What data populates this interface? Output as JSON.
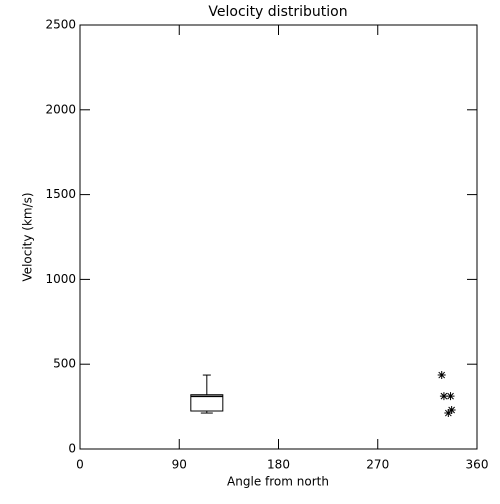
{
  "chart_data": {
    "type": "box",
    "title": "Velocity distribution",
    "x_label": "Angle from north",
    "y_label": "Velocity (km/s)",
    "xlim": [
      0,
      360
    ],
    "xticks": [
      0,
      90,
      180,
      270,
      360
    ],
    "ylim": [
      0,
      2500
    ],
    "yticks": [
      0,
      500,
      1000,
      1500,
      2000,
      2500
    ],
    "boxes": [
      {
        "x": 115,
        "whislo": 212,
        "q1": 224,
        "median": 310,
        "q3": 320,
        "whishi": 436
      }
    ],
    "points": {
      "x": [
        328,
        330,
        336,
        334,
        337
      ],
      "y": [
        436,
        312,
        312,
        212,
        230
      ]
    },
    "color": "#000000"
  }
}
